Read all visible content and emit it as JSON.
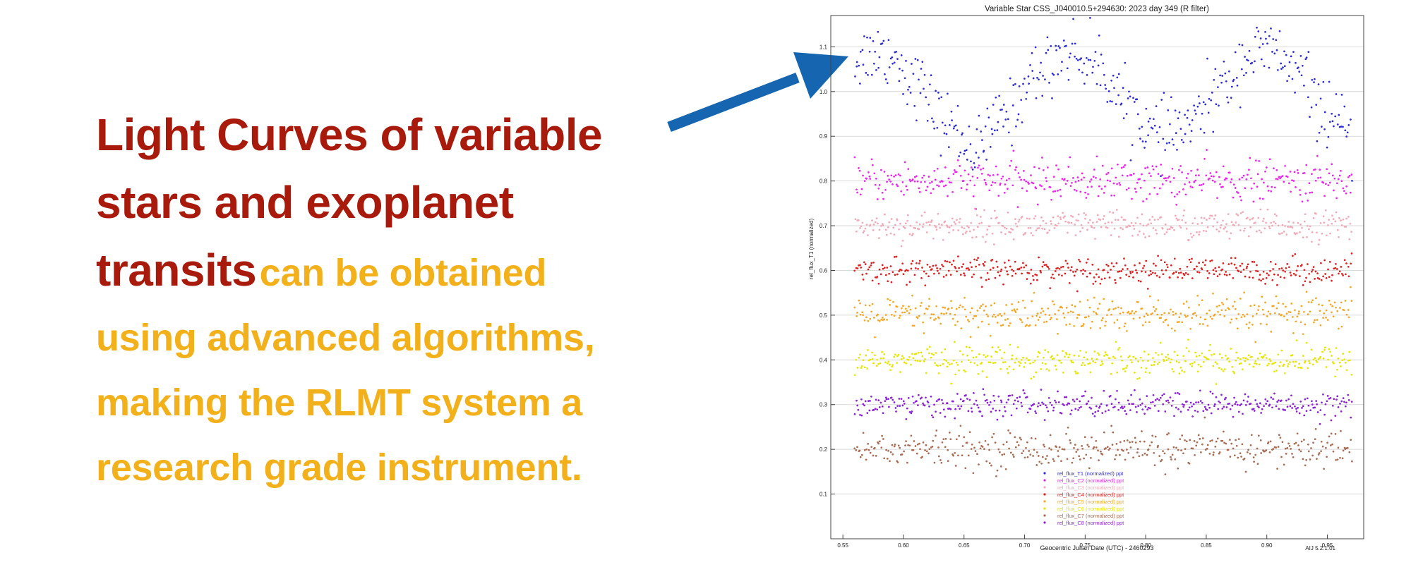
{
  "headline": {
    "red_line_1": "Light Curves of variable",
    "red_line_2": "stars and exoplanet",
    "red_line_3": "transits",
    "gold_line_3": "can be obtained",
    "gold_line_4": "using advanced algorithms,",
    "gold_line_5": "making the RLMT system a",
    "gold_line_6": "research grade instrument."
  },
  "colors": {
    "red_text": "#a81a0b",
    "gold_text": "#f2b01a",
    "arrow": "#1565b0"
  },
  "chart_data": {
    "type": "scatter",
    "title": "Variable Star CSS_J040010.5+294630:  2023 day 349 (R filter)",
    "xlabel": "Geocentric Julian Date (UTC) - 2460293",
    "ylabel": "rel_flux_T1 (normalized)",
    "version": "AIJ 5.2.1.01",
    "xlim": [
      0.54,
      0.98
    ],
    "ylim": [
      0.0,
      1.17
    ],
    "grid": true,
    "legend_position": "bottom-center",
    "xticks": [
      "0.55",
      "0.60",
      "0.65",
      "0.70",
      "0.75",
      "0.80",
      "0.85",
      "0.90",
      "0.95"
    ],
    "yticks": [
      "0.1",
      "0.2",
      "0.3",
      "0.4",
      "0.5",
      "0.6",
      "0.7",
      "0.8",
      "0.9",
      "1.0",
      "1.1"
    ],
    "x_range_data": [
      0.56,
      0.97
    ],
    "series": [
      {
        "name": "rel_flux_T1 (normalized) ppt",
        "color": "#2a2ad8",
        "model": "variable",
        "curve_x": [
          0.56,
          0.575,
          0.59,
          0.61,
          0.635,
          0.66,
          0.685,
          0.71,
          0.735,
          0.76,
          0.785,
          0.81,
          0.835,
          0.86,
          0.885,
          0.905,
          0.925,
          0.95,
          0.97
        ],
        "curve_y": [
          1.07,
          1.09,
          1.08,
          1.02,
          0.93,
          0.87,
          0.95,
          1.04,
          1.09,
          1.06,
          0.97,
          0.9,
          0.92,
          1.0,
          1.08,
          1.09,
          1.04,
          0.95,
          0.89
        ],
        "scatter": 0.035
      },
      {
        "name": "rel_flux_C2 (normalized) ppt",
        "color": "#ee22ee",
        "baseline": 0.8,
        "scatter": 0.022
      },
      {
        "name": "rel_flux_C3 (normalized) ppt",
        "color": "#f2a8b6",
        "baseline": 0.7,
        "scatter": 0.016
      },
      {
        "name": "rel_flux_C4 (normalized) ppt",
        "color": "#e01e1e",
        "baseline": 0.6,
        "scatter": 0.014
      },
      {
        "name": "rel_flux_C5 (normalized) ppt",
        "color": "#f5a623",
        "baseline": 0.5,
        "scatter": 0.02
      },
      {
        "name": "rel_flux_C6 (normalized) ppt",
        "color": "#e6e600",
        "baseline": 0.4,
        "scatter": 0.016
      },
      {
        "name": "rel_flux_C7 (normalized) ppt",
        "color": "#a86a50",
        "baseline": 0.2,
        "scatter": 0.02
      },
      {
        "name": "rel_flux_C8 (normalized) ppt",
        "color": "#8b1fd6",
        "baseline": 0.3,
        "scatter": 0.014
      }
    ]
  }
}
